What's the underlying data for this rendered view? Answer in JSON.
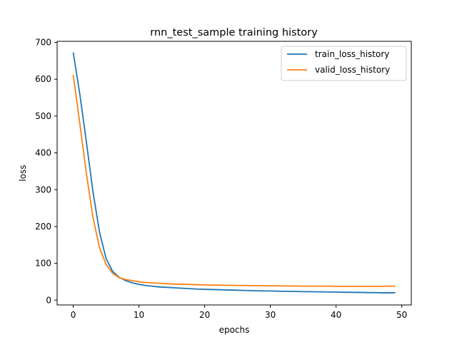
{
  "chart_data": {
    "type": "line",
    "title": "rnn_test_sample training history",
    "xlabel": "epochs",
    "ylabel": "loss",
    "xlim": [
      -2.45,
      51.45
    ],
    "ylim": [
      -13,
      703
    ],
    "xticks": [
      0,
      10,
      20,
      30,
      40,
      50
    ],
    "yticks": [
      0,
      100,
      200,
      300,
      400,
      500,
      600,
      700
    ],
    "grid": false,
    "legend_position": "top-right",
    "series": [
      {
        "name": "train_loss_history",
        "color": "#1f77b4",
        "x": [
          0,
          1,
          2,
          3,
          4,
          5,
          6,
          7,
          8,
          9,
          10,
          11,
          12,
          13,
          14,
          15,
          16,
          17,
          18,
          19,
          20,
          21,
          22,
          23,
          24,
          25,
          26,
          27,
          28,
          29,
          30,
          31,
          32,
          33,
          34,
          35,
          36,
          37,
          38,
          39,
          40,
          41,
          42,
          43,
          44,
          45,
          46,
          47,
          48,
          49
        ],
        "values": [
          673,
          560,
          430,
          295,
          185,
          113,
          78,
          62,
          53,
          47,
          43,
          40,
          38,
          36,
          35,
          34,
          33,
          32,
          31,
          30,
          29.5,
          29,
          28.5,
          28,
          27.5,
          27,
          26.5,
          26,
          25.5,
          25,
          25,
          24.5,
          24,
          24,
          23.5,
          23,
          23,
          22.5,
          22.5,
          22,
          22,
          21.5,
          21.5,
          21,
          21,
          20.5,
          20.5,
          20,
          20,
          20
        ]
      },
      {
        "name": "valid_loss_history",
        "color": "#ff7f0e",
        "x": [
          0,
          1,
          2,
          3,
          4,
          5,
          6,
          7,
          8,
          9,
          10,
          11,
          12,
          13,
          14,
          15,
          16,
          17,
          18,
          19,
          20,
          21,
          22,
          23,
          24,
          25,
          26,
          27,
          28,
          29,
          30,
          31,
          32,
          33,
          34,
          35,
          36,
          37,
          38,
          39,
          40,
          41,
          42,
          43,
          44,
          45,
          46,
          47,
          48,
          49
        ],
        "values": [
          612,
          480,
          345,
          225,
          143,
          97,
          73,
          61,
          56,
          53,
          50,
          48,
          47,
          46,
          45,
          44,
          43.5,
          43,
          42.5,
          42,
          41.5,
          41,
          41,
          40.5,
          40.5,
          40,
          40,
          39.5,
          39.5,
          39,
          39,
          39,
          38.5,
          38.5,
          38.5,
          38,
          38,
          38,
          38,
          38,
          37.5,
          37.5,
          37.5,
          37.5,
          37.5,
          37.5,
          37.5,
          37.5,
          38,
          38
        ]
      }
    ]
  }
}
